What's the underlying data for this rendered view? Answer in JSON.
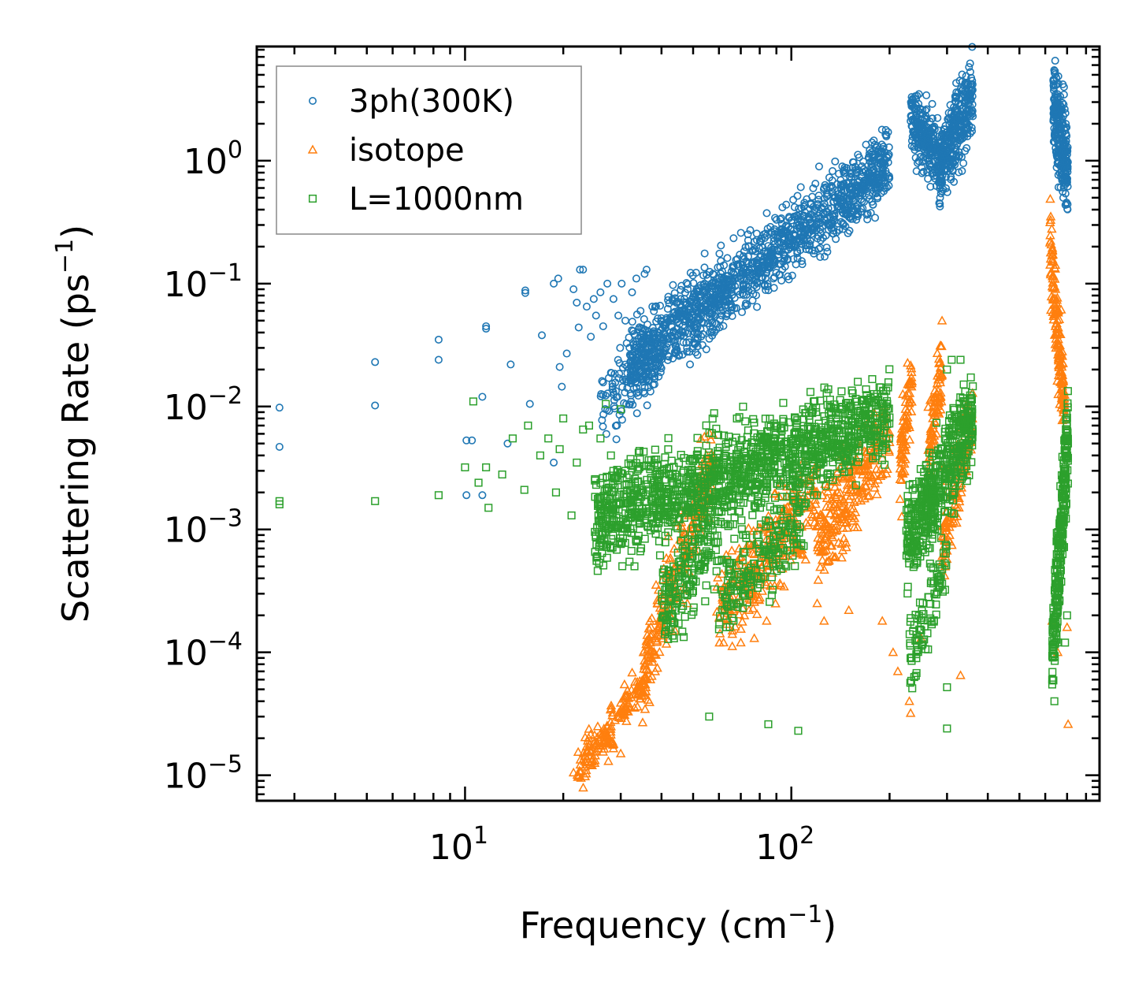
{
  "chart_data": {
    "type": "scatter",
    "xscale": "log",
    "yscale": "log",
    "xlabel": "Frequency (cm",
    "xlabel_sup": "−1",
    "xlabel_close": ")",
    "ylabel": "Scattering Rate (ps",
    "ylabel_sup": "−1",
    "ylabel_close": ")",
    "xlim": [
      2.3,
      880
    ],
    "ylim": [
      6.2e-06,
      8.5
    ],
    "x_ticks": [
      {
        "base": "10",
        "exp": "1",
        "value": 10
      },
      {
        "base": "10",
        "exp": "2",
        "value": 100
      }
    ],
    "y_ticks": [
      {
        "base": "10",
        "exp": "0",
        "value": 1
      },
      {
        "base": "10",
        "exp": "−1",
        "value": 0.1
      },
      {
        "base": "10",
        "exp": "−2",
        "value": 0.01
      },
      {
        "base": "10",
        "exp": "−3",
        "value": 0.001
      },
      {
        "base": "10",
        "exp": "−4",
        "value": 0.0001
      },
      {
        "base": "10",
        "exp": "−5",
        "value": 1e-05
      }
    ],
    "legend_position": "top-left",
    "series": [
      {
        "name": "3ph(300K)",
        "marker": "circle",
        "color": "#1f77b4",
        "points": [
          [
            2.7,
            0.0098
          ],
          [
            2.7,
            0.0047
          ],
          [
            5.3,
            0.023
          ],
          [
            5.3,
            0.0102
          ],
          [
            8.3,
            0.035
          ],
          [
            8.3,
            0.024
          ],
          [
            10.1,
            0.0053
          ],
          [
            10.1,
            0.0019
          ],
          [
            10.5,
            0.0053
          ],
          [
            11.3,
            0.012
          ],
          [
            11.3,
            0.0019
          ],
          [
            11.6,
            0.045
          ],
          [
            11.6,
            0.043
          ],
          [
            13.5,
            0.005
          ],
          [
            13.8,
            0.022
          ],
          [
            15.3,
            0.088
          ],
          [
            15.3,
            0.084
          ],
          [
            15.8,
            0.0105
          ],
          [
            17.2,
            0.038
          ],
          [
            18.7,
            0.1
          ],
          [
            18.7,
            0.0035
          ],
          [
            19.3,
            0.11
          ],
          [
            19.5,
            0.021
          ],
          [
            19.8,
            0.0145
          ],
          [
            20.5,
            0.027
          ],
          [
            21.5,
            0.09
          ],
          [
            22,
            0.07
          ],
          [
            22.3,
            0.044
          ],
          [
            22.5,
            0.13
          ],
          [
            23,
            0.13
          ],
          [
            23.6,
            0.065
          ],
          [
            24.3,
            0.037
          ],
          [
            24.8,
            0.075
          ],
          [
            25.2,
            0.055
          ],
          [
            26,
            0.085
          ],
          [
            26.5,
            0.045
          ],
          [
            27.3,
            0.1
          ],
          [
            28.5,
            0.075
          ],
          [
            29.5,
            0.055
          ],
          [
            30.2,
            0.1
          ],
          [
            31,
            0.05
          ],
          [
            32.5,
            0.085
          ],
          [
            33.5,
            0.11
          ],
          [
            34.5,
            0.06
          ],
          [
            35.5,
            0.12
          ],
          [
            36,
            0.13
          ],
          [
            37.5,
            0.065
          ]
        ],
        "bands": [
          {
            "x0": 26,
            "x1": 40,
            "y0": 0.009,
            "y1": 0.03,
            "slope": 1.3,
            "spread": 2.2,
            "n": 140
          },
          {
            "x0": 32,
            "x1": 200,
            "y0": 0.022,
            "y1": 1.0,
            "slope": 1.0,
            "spread": 2.1,
            "n": 1300
          },
          {
            "x0": 232,
            "x1": 290,
            "y0": 2.2,
            "y1": 0.9,
            "slope": 0,
            "spread": 2.0,
            "n": 260
          },
          {
            "x0": 285,
            "x1": 360,
            "y0": 0.9,
            "y1": 3.5,
            "slope": 0,
            "spread": 2.4,
            "n": 300
          },
          {
            "x0": 635,
            "x1": 705,
            "y0": 3.0,
            "y1": 0.8,
            "slope": 0,
            "spread": 2.6,
            "n": 260
          }
        ]
      },
      {
        "name": "isotope",
        "marker": "triangle",
        "color": "#ff7f0e",
        "points": [
          [
            21.5,
            1.05e-05
          ],
          [
            22.5,
            1.07e-05
          ],
          [
            23.5,
            1.03e-05
          ],
          [
            24.5,
            1.2e-05
          ],
          [
            25,
            1.55e-05
          ],
          [
            26.5,
            1.55e-05
          ],
          [
            27.5,
            1.3e-05
          ],
          [
            28.5,
            1.65e-05
          ],
          [
            30,
            1.5e-05
          ],
          [
            27.3,
            2.5e-05
          ],
          [
            28.8,
            2.8e-05
          ],
          [
            30.5,
            3.2e-05
          ],
          [
            32,
            3.6e-05
          ],
          [
            34.5,
            4.2e-05
          ],
          [
            37,
            6e-05
          ],
          [
            40,
            0.0002
          ],
          [
            44,
            0.00015
          ],
          [
            48,
            0.00025
          ],
          [
            62,
            0.00012
          ],
          [
            66,
            0.00015
          ],
          [
            70,
            0.00012
          ],
          [
            77,
            0.00013
          ],
          [
            84,
            0.00018
          ],
          [
            120,
            0.00025
          ],
          [
            126,
            0.00018
          ],
          [
            150,
            0.00022
          ],
          [
            190,
            0.00018
          ],
          [
            205,
            0.0001
          ],
          [
            212,
            7e-05
          ],
          [
            230,
            4e-05
          ],
          [
            232,
            3.2e-05
          ],
          [
            250,
            0.00013
          ],
          [
            330,
            6.5e-05
          ],
          [
            630,
            0.00018
          ],
          [
            655,
            0.0001
          ],
          [
            700,
            0.00016
          ],
          [
            705,
            2.6e-05
          ]
        ],
        "bands": [
          {
            "x0": 22,
            "x1": 36,
            "y0": 1.1e-05,
            "y1": 6e-05,
            "slope": 0,
            "spread": 1.6,
            "n": 160
          },
          {
            "x0": 35,
            "x1": 58,
            "y0": 6e-05,
            "y1": 0.004,
            "slope": 0,
            "spread": 2.4,
            "n": 260
          },
          {
            "x0": 58,
            "x1": 120,
            "y0": 0.0002,
            "y1": 0.002,
            "slope": 0,
            "spread": 2.6,
            "n": 280
          },
          {
            "x0": 120,
            "x1": 200,
            "y0": 0.0008,
            "y1": 0.006,
            "slope": 0,
            "spread": 2.6,
            "n": 260
          },
          {
            "x0": 215,
            "x1": 235,
            "y0": 0.003,
            "y1": 0.018,
            "slope": 0,
            "spread": 2.5,
            "n": 80
          },
          {
            "x0": 262,
            "x1": 290,
            "y0": 0.004,
            "y1": 0.02,
            "slope": 0,
            "spread": 2.5,
            "n": 90
          },
          {
            "x0": 290,
            "x1": 360,
            "y0": 0.0009,
            "y1": 0.008,
            "slope": 0,
            "spread": 2.4,
            "n": 120
          },
          {
            "x0": 620,
            "x1": 690,
            "y0": 0.2,
            "y1": 0.008,
            "slope": 0,
            "spread": 2.4,
            "n": 160
          }
        ]
      },
      {
        "name": "L=1000nm",
        "marker": "square",
        "color": "#2ca02c",
        "points": [
          [
            2.7,
            0.0017
          ],
          [
            2.7,
            0.0016
          ],
          [
            5.3,
            0.0017
          ],
          [
            8.3,
            0.0019
          ],
          [
            10,
            0.0032
          ],
          [
            10.6,
            0.011
          ],
          [
            11,
            0.0024
          ],
          [
            11.6,
            0.0032
          ],
          [
            11.8,
            0.0015
          ],
          [
            13,
            0.0028
          ],
          [
            14,
            0.0055
          ],
          [
            15.2,
            0.0021
          ],
          [
            15.6,
            0.007
          ],
          [
            17,
            0.004
          ],
          [
            18,
            0.0055
          ],
          [
            19,
            0.002
          ],
          [
            19.5,
            0.0045
          ],
          [
            20,
            0.008
          ],
          [
            21.2,
            0.0013
          ],
          [
            22,
            0.0035
          ],
          [
            23,
            0.0065
          ],
          [
            24,
            0.007
          ],
          [
            25,
            0.0025
          ],
          [
            26,
            0.0055
          ],
          [
            27,
            0.0105
          ],
          [
            28,
            0.004
          ],
          [
            30,
            0.0095
          ],
          [
            56,
            3e-05
          ],
          [
            85,
            2.6e-05
          ],
          [
            105,
            2.3e-05
          ],
          [
            300,
            2.4e-05
          ],
          [
            300,
            5.2e-05
          ],
          [
            640,
            4e-05
          ],
          [
            690,
            0.00012
          ],
          [
            700,
            0.0002
          ],
          [
            310,
            0.024
          ],
          [
            330,
            0.024
          ],
          [
            300,
            0.02
          ]
        ],
        "bands": [
          {
            "x0": 25,
            "x1": 200,
            "y0": 0.0012,
            "y1": 0.008,
            "slope": 0,
            "spread": 2.6,
            "n": 1400
          },
          {
            "x0": 40,
            "x1": 60,
            "y0": 0.0002,
            "y1": 0.001,
            "slope": 0,
            "spread": 2.5,
            "n": 180
          },
          {
            "x0": 60,
            "x1": 110,
            "y0": 0.00025,
            "y1": 0.0015,
            "slope": 0,
            "spread": 2.4,
            "n": 200
          },
          {
            "x0": 225,
            "x1": 360,
            "y0": 0.0008,
            "y1": 0.008,
            "slope": 0,
            "spread": 2.6,
            "n": 500
          },
          {
            "x0": 230,
            "x1": 300,
            "y0": 8e-05,
            "y1": 0.0006,
            "slope": 0,
            "spread": 2.3,
            "n": 90
          },
          {
            "x0": 630,
            "x1": 705,
            "y0": 0.0001,
            "y1": 0.006,
            "slope": 0,
            "spread": 3.0,
            "n": 260
          }
        ]
      }
    ]
  }
}
